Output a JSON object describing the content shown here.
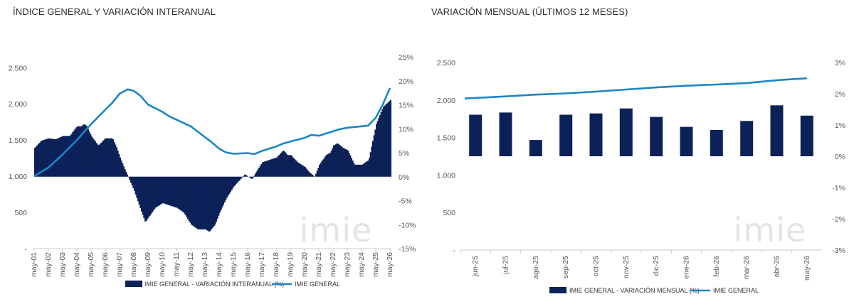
{
  "chart_data": [
    {
      "type": "bar+line",
      "title": "ÍNDICE GENERAL Y VARIACIÓN INTERANUAL",
      "left_axis": {
        "ticks": [
          "-",
          "500",
          "1.000",
          "1.500",
          "2.000",
          "2.500"
        ],
        "values": [
          0,
          500,
          1000,
          1500,
          2000,
          2500
        ],
        "range": [
          0,
          2650
        ]
      },
      "right_axis": {
        "ticks": [
          "-15%",
          "-10%",
          "-5%",
          "0%",
          "5%",
          "10%",
          "15%",
          "20%",
          "25%"
        ],
        "values": [
          -15,
          -10,
          -5,
          0,
          5,
          10,
          15,
          20,
          25
        ],
        "range": [
          -15,
          25
        ]
      },
      "x_labels": [
        "may-01",
        "may-02",
        "may-03",
        "may-04",
        "may-05",
        "may-06",
        "may-07",
        "may-08",
        "may-09",
        "may-10",
        "may-11",
        "may-12",
        "may-13",
        "may-14",
        "may-15",
        "may-16",
        "may-17",
        "may-18",
        "may-19",
        "may-20",
        "may-21",
        "may-22",
        "may-23",
        "may-24",
        "may-25",
        "may-26"
      ],
      "series": [
        {
          "name": "IMIE GENERAL - VARIACIÓN INTERANUAL (%)",
          "kind": "area",
          "axis": "right",
          "color": "#0d2159",
          "x": [
            2001.33,
            2001.8,
            2002.3,
            2002.8,
            2003.33,
            2003.8,
            2004.3,
            2004.6,
            2004.8,
            2005.0,
            2005.3,
            2005.8,
            2006.3,
            2006.8,
            2007.1,
            2007.33,
            2007.6,
            2007.9,
            2008.33,
            2008.8,
            2009.1,
            2009.33,
            2009.8,
            2010.33,
            2010.8,
            2011.33,
            2011.8,
            2012.33,
            2012.8,
            2013.33,
            2013.6,
            2014.0,
            2014.33,
            2014.8,
            2015.33,
            2015.8,
            2016.1,
            2016.33,
            2016.6,
            2017.0,
            2017.33,
            2017.8,
            2018.33,
            2018.8,
            2019.1,
            2019.33,
            2019.8,
            2020.33,
            2020.6,
            2021.0,
            2021.33,
            2021.8,
            2022.1,
            2022.33,
            2022.6,
            2023.0,
            2023.33,
            2023.8,
            2024.1,
            2024.33,
            2024.8,
            2025.33,
            2025.8,
            2026.33
          ],
          "values": [
            6.0,
            7.5,
            8.0,
            7.8,
            8.5,
            8.5,
            10.5,
            10.5,
            11.0,
            10.5,
            8.5,
            6.5,
            8.0,
            8.0,
            6.0,
            4.0,
            2.0,
            0.0,
            -3.0,
            -7.0,
            -9.5,
            -8.5,
            -6.5,
            -5.5,
            -6.0,
            -6.5,
            -7.5,
            -10.0,
            -11.0,
            -11.0,
            -11.5,
            -10.0,
            -7.5,
            -4.5,
            -2.0,
            -0.5,
            0.5,
            0.0,
            -0.5,
            1.5,
            3.0,
            3.5,
            4.0,
            5.5,
            4.5,
            4.5,
            3.0,
            2.0,
            1.0,
            0.0,
            2.5,
            4.5,
            5.0,
            6.5,
            7.0,
            6.0,
            5.5,
            2.5,
            2.5,
            2.5,
            3.5,
            11.0,
            14.5,
            16.0
          ]
        },
        {
          "name": "IMIE GENERAL",
          "kind": "line",
          "axis": "left",
          "color": "#1b86c4",
          "x": [
            2001.33,
            2002.33,
            2003.33,
            2004.33,
            2005.33,
            2006.33,
            2006.8,
            2007.33,
            2007.9,
            2008.33,
            2008.8,
            2009.33,
            2010.33,
            2010.8,
            2011.33,
            2012.33,
            2012.8,
            2013.33,
            2013.8,
            2014.33,
            2014.8,
            2015.33,
            2016.33,
            2016.8,
            2017.33,
            2018.33,
            2018.8,
            2019.33,
            2020.33,
            2020.8,
            2021.33,
            2022.33,
            2022.8,
            2023.33,
            2024.33,
            2024.8,
            2025.33,
            2025.8,
            2026.33
          ],
          "values": [
            1000,
            1120,
            1300,
            1500,
            1720,
            1920,
            2010,
            2140,
            2200,
            2180,
            2110,
            1990,
            1890,
            1830,
            1780,
            1690,
            1620,
            1540,
            1470,
            1380,
            1330,
            1310,
            1320,
            1305,
            1350,
            1410,
            1450,
            1480,
            1530,
            1570,
            1560,
            1620,
            1650,
            1670,
            1690,
            1700,
            1810,
            1980,
            2220
          ]
        }
      ],
      "watermark": "imie"
    },
    {
      "type": "bar+line",
      "title": "VARIACIÓN MENSUAL (ÚLTIMOS 12 MESES)",
      "left_axis": {
        "ticks": [
          "-",
          "500",
          "1.000",
          "1.500",
          "2.000",
          "2.500"
        ],
        "values": [
          0,
          500,
          1000,
          1500,
          2000,
          2500
        ],
        "range": [
          0,
          2500
        ]
      },
      "right_axis": {
        "ticks": [
          "-3%",
          "-2%",
          "-1%",
          "0%",
          "1%",
          "2%",
          "3%"
        ],
        "values": [
          -3,
          -2,
          -1,
          0,
          1,
          2,
          3
        ],
        "range": [
          -3,
          3
        ]
      },
      "categories": [
        "jun-25",
        "jul-25",
        "ago-25",
        "sep-25",
        "oct-25",
        "nov-25",
        "dic-25",
        "ene-26",
        "feb-26",
        "mar-26",
        "abr-26",
        "may-26"
      ],
      "series": [
        {
          "name": "IMIE GENERAL - VARIACIÓN MENSUAL (%)",
          "kind": "bar",
          "axis": "right",
          "color": "#0d2159",
          "values": [
            1.33,
            1.4,
            0.52,
            1.33,
            1.37,
            1.53,
            1.26,
            0.94,
            0.84,
            1.13,
            1.63,
            1.3
          ]
        },
        {
          "name": "IMIE GENERAL",
          "kind": "line",
          "axis": "left",
          "color": "#1b86c4",
          "values": [
            2020,
            2048,
            2072,
            2088,
            2112,
            2140,
            2168,
            2190,
            2206,
            2226,
            2264,
            2290
          ]
        }
      ],
      "watermark": "imie"
    }
  ]
}
